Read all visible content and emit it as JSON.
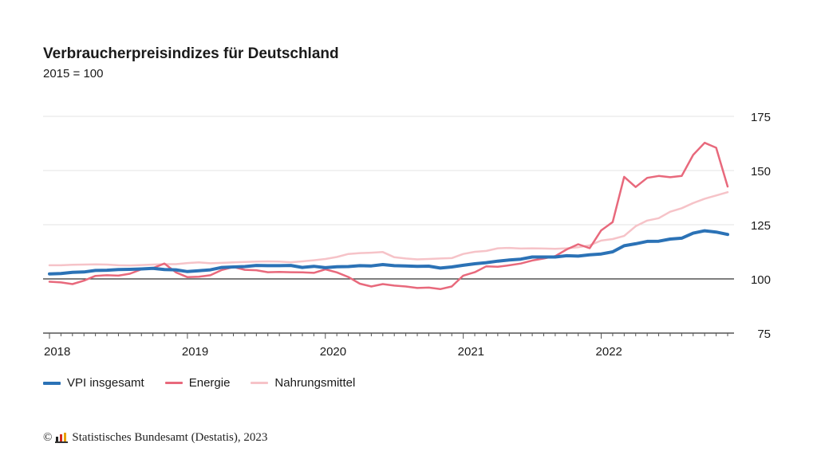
{
  "header": {
    "title": "Verbraucherpreisindizes für Deutschland",
    "subtitle": "2015 = 100"
  },
  "footer": {
    "copyright_symbol": "©",
    "source": "Statistisches Bundesamt (Destatis), 2023",
    "logo_icon": "destatis-bar-logo-icon"
  },
  "colors": {
    "vpi": "#2b72b6",
    "energie": "#e8697c",
    "nahrung": "#f6c3c8",
    "baseline": "#333333",
    "grid": "#e3e3e3"
  },
  "chart_data": {
    "type": "line",
    "title": "Verbraucherpreisindizes für Deutschland",
    "subtitle": "2015 = 100",
    "xlabel": "",
    "ylabel": "",
    "ylim": [
      75,
      175
    ],
    "yticks": [
      75,
      100,
      125,
      150,
      175
    ],
    "baseline": 100,
    "xtick_labels": [
      "2018",
      "2019",
      "2020",
      "2021",
      "2022"
    ],
    "x": [
      "2018-01",
      "2018-02",
      "2018-03",
      "2018-04",
      "2018-05",
      "2018-06",
      "2018-07",
      "2018-08",
      "2018-09",
      "2018-10",
      "2018-11",
      "2018-12",
      "2019-01",
      "2019-02",
      "2019-03",
      "2019-04",
      "2019-05",
      "2019-06",
      "2019-07",
      "2019-08",
      "2019-09",
      "2019-10",
      "2019-11",
      "2019-12",
      "2020-01",
      "2020-02",
      "2020-03",
      "2020-04",
      "2020-05",
      "2020-06",
      "2020-07",
      "2020-08",
      "2020-09",
      "2020-10",
      "2020-11",
      "2020-12",
      "2021-01",
      "2021-02",
      "2021-03",
      "2021-04",
      "2021-05",
      "2021-06",
      "2021-07",
      "2021-08",
      "2021-09",
      "2021-10",
      "2021-11",
      "2021-12",
      "2022-01",
      "2022-02",
      "2022-03",
      "2022-04",
      "2022-05",
      "2022-06",
      "2022-07",
      "2022-08",
      "2022-09",
      "2022-10",
      "2022-11",
      "2022-12"
    ],
    "grid": true,
    "legend_position": "bottom-left",
    "series": [
      {
        "name": "VPI insgesamt",
        "color": "#2b72b6",
        "values": [
          102.3,
          102.5,
          103.0,
          103.2,
          103.9,
          104.0,
          104.3,
          104.4,
          104.6,
          104.9,
          104.3,
          104.2,
          103.4,
          103.8,
          104.2,
          105.3,
          105.5,
          105.7,
          106.2,
          106.1,
          106.1,
          106.2,
          105.3,
          105.8,
          105.2,
          105.6,
          105.7,
          106.1,
          106.0,
          106.6,
          106.1,
          106.0,
          105.8,
          105.9,
          105.0,
          105.5,
          106.3,
          107.0,
          107.5,
          108.2,
          108.7,
          109.1,
          110.1,
          110.1,
          110.1,
          110.7,
          110.5,
          111.1,
          111.5,
          112.5,
          115.3,
          116.2,
          117.3,
          117.4,
          118.4,
          118.8,
          121.1,
          122.2,
          121.6,
          120.5
        ]
      },
      {
        "name": "Energie",
        "color": "#e8697c",
        "values": [
          98.7,
          98.4,
          97.6,
          99.2,
          101.4,
          101.7,
          101.5,
          102.4,
          104.4,
          105.0,
          107.1,
          103.0,
          100.8,
          101.0,
          101.7,
          104.1,
          105.5,
          104.2,
          104.0,
          103.1,
          103.2,
          103.1,
          103.0,
          102.8,
          104.4,
          103.0,
          100.9,
          97.8,
          96.5,
          97.6,
          96.9,
          96.5,
          95.8,
          96.0,
          95.3,
          96.5,
          101.5,
          103.1,
          105.8,
          105.6,
          106.3,
          107.1,
          108.5,
          109.4,
          110.5,
          113.6,
          116.0,
          114.2,
          122.4,
          126.2,
          147.1,
          142.4,
          146.6,
          147.5,
          146.9,
          147.5,
          157.2,
          162.8,
          160.5,
          142.6
        ]
      },
      {
        "name": "Nahrungsmittel",
        "color": "#f6c3c8",
        "values": [
          106.3,
          106.3,
          106.5,
          106.6,
          106.7,
          106.6,
          106.3,
          106.2,
          106.4,
          106.6,
          106.8,
          106.8,
          107.3,
          107.6,
          107.2,
          107.4,
          107.6,
          107.8,
          108.0,
          108.1,
          108.0,
          107.7,
          108.1,
          108.6,
          109.2,
          110.1,
          111.5,
          111.9,
          112.1,
          112.4,
          110.0,
          109.4,
          109.0,
          109.2,
          109.4,
          109.6,
          111.5,
          112.5,
          112.9,
          114.1,
          114.3,
          114.0,
          114.1,
          114.0,
          113.9,
          114.1,
          114.6,
          115.5,
          117.7,
          118.4,
          119.8,
          124.3,
          126.9,
          128.0,
          131.0,
          132.6,
          135.0,
          137.0,
          138.5,
          140.0
        ]
      }
    ]
  }
}
